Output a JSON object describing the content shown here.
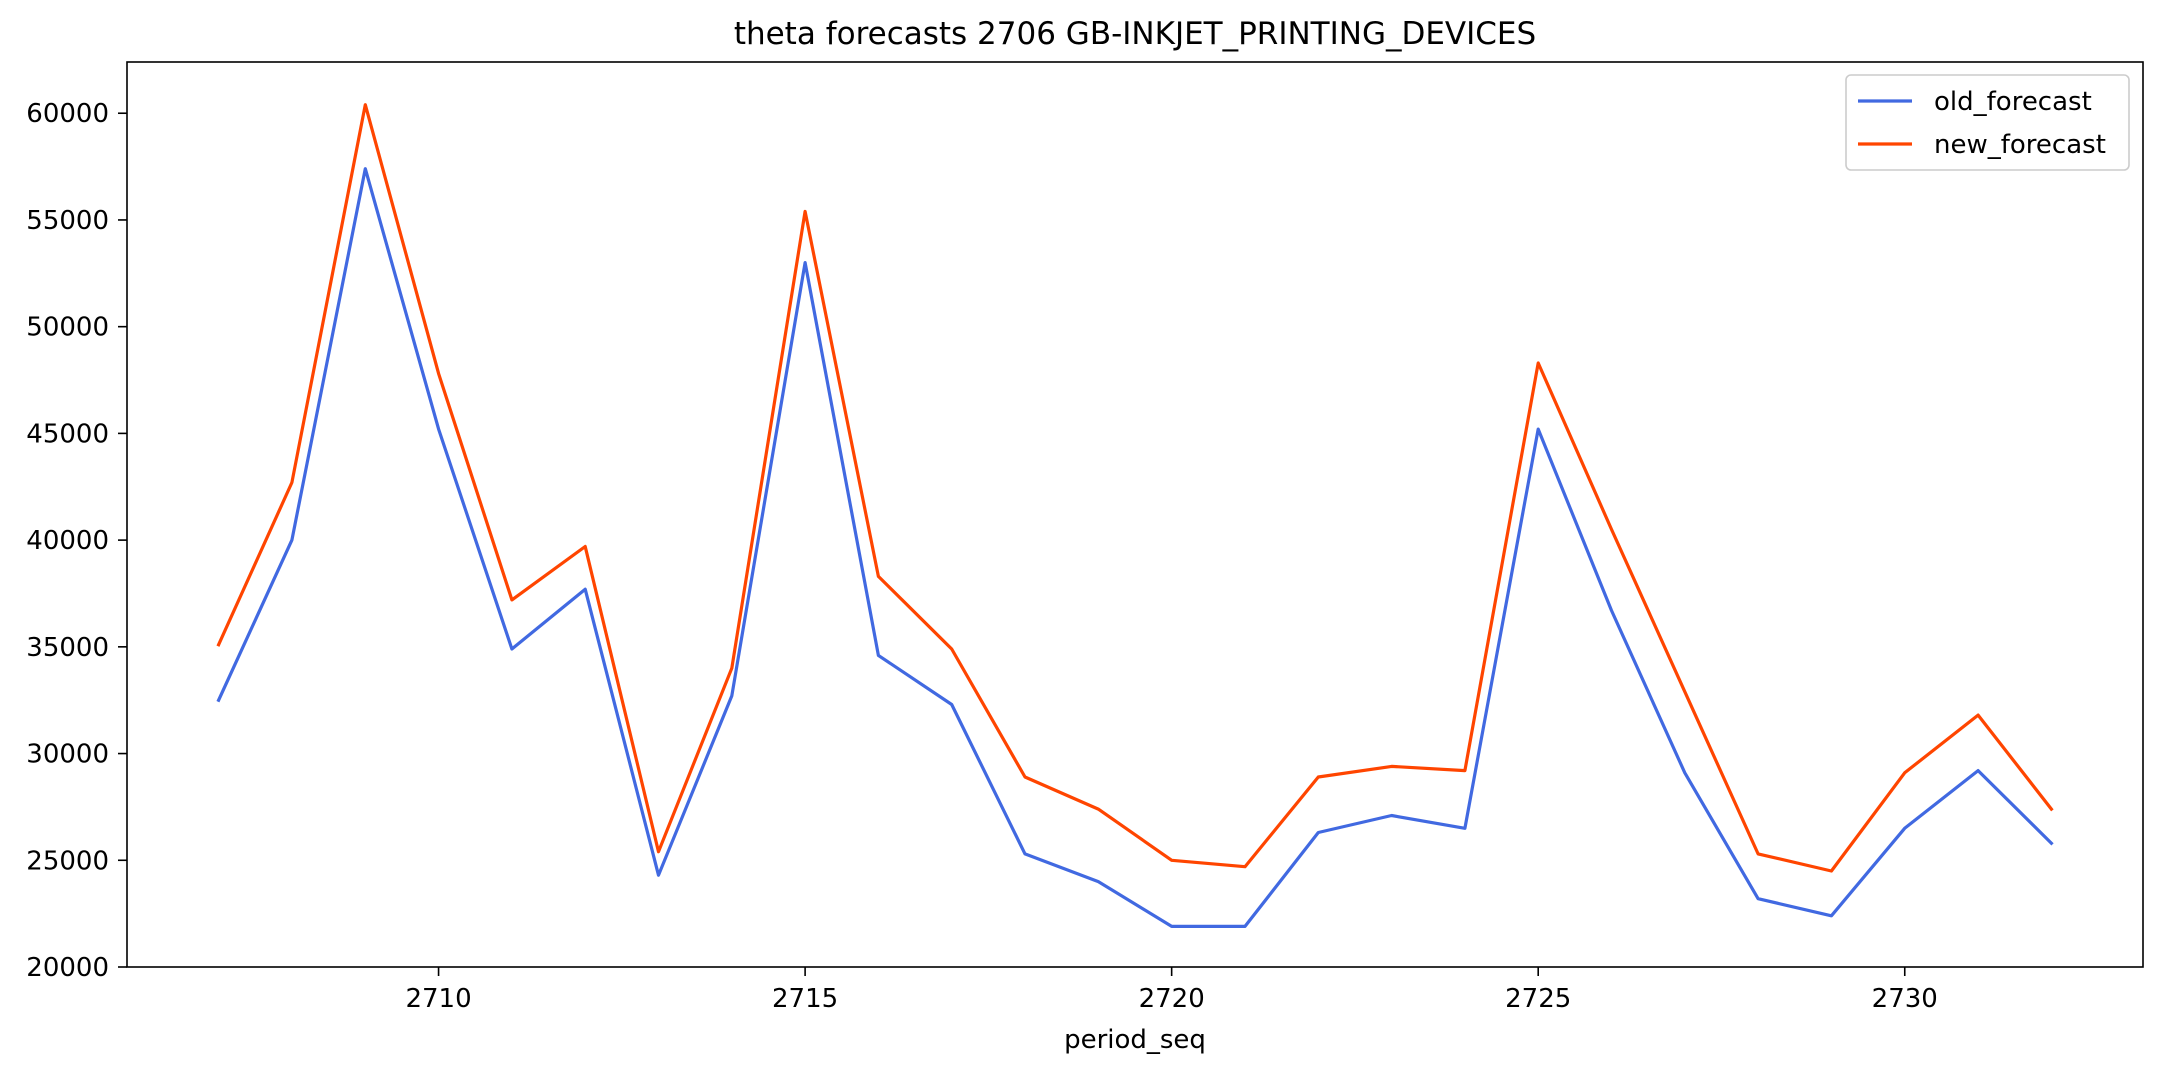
{
  "chart_data": {
    "type": "line",
    "title": "theta forecasts 2706 GB-INKJET_PRINTING_DEVICES",
    "xlabel": "period_seq",
    "ylabel": "",
    "x": [
      2707,
      2708,
      2709,
      2710,
      2711,
      2712,
      2713,
      2714,
      2715,
      2716,
      2717,
      2718,
      2719,
      2720,
      2721,
      2722,
      2723,
      2724,
      2725,
      2726,
      2727,
      2728,
      2729,
      2730,
      2731,
      2732
    ],
    "xlim": [
      2705.75,
      2733.25
    ],
    "ylim": [
      20000,
      62400
    ],
    "xticks": [
      2710,
      2715,
      2720,
      2725,
      2730
    ],
    "yticks": [
      20000,
      25000,
      30000,
      35000,
      40000,
      45000,
      50000,
      55000,
      60000
    ],
    "grid": false,
    "legend_position": "top-right",
    "series": [
      {
        "name": "old_forecast",
        "color": "#4169e1",
        "values": [
          32500,
          40000,
          57400,
          45200,
          34900,
          37700,
          24300,
          32700,
          53000,
          34600,
          32300,
          25300,
          24000,
          21900,
          21900,
          26300,
          27100,
          26500,
          45200,
          36700,
          29100,
          23200,
          22400,
          26500,
          29200,
          25800
        ]
      },
      {
        "name": "new_forecast",
        "color": "#ff4500",
        "values": [
          35100,
          42700,
          60400,
          47800,
          37200,
          39700,
          25400,
          34000,
          55400,
          38300,
          34900,
          28900,
          27400,
          25000,
          24700,
          28900,
          29400,
          29200,
          48300,
          40500,
          32900,
          25300,
          24500,
          29100,
          31800,
          27400
        ]
      }
    ]
  }
}
